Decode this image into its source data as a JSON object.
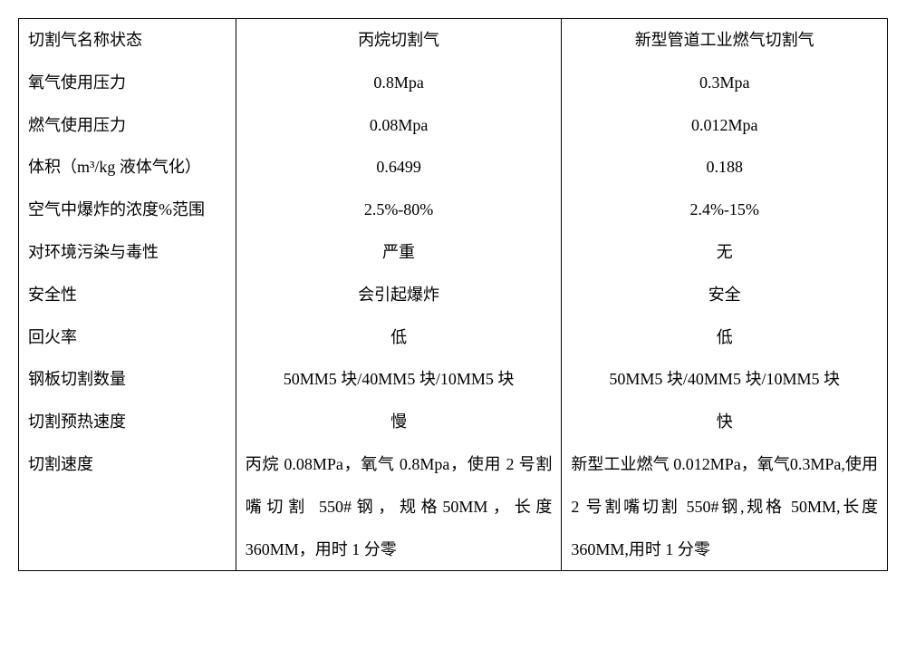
{
  "table": {
    "columns": {
      "label_header": "切割气名称状态",
      "col_a_header": "丙烷切割气",
      "col_b_header": "新型管道工业燃气切割气"
    },
    "rows": [
      {
        "label": "氧气使用压力",
        "a": "0.8Mpa",
        "b": "0.3Mpa"
      },
      {
        "label": "燃气使用压力",
        "a": "0.08Mpa",
        "b": "0.012Mpa"
      },
      {
        "label": "体积（m³/kg 液体气化）",
        "a": "0.6499",
        "b": "0.188"
      },
      {
        "label": "空气中爆炸的浓度%范围",
        "a": "2.5%-80%",
        "b": "2.4%-15%"
      },
      {
        "label": "对环境污染与毒性",
        "a": "严重",
        "b": "无"
      },
      {
        "label": "安全性",
        "a": "会引起爆炸",
        "b": "安全"
      },
      {
        "label": "回火率",
        "a": "低",
        "b": "低"
      },
      {
        "label": "钢板切割数量",
        "a": "50MM5 块/40MM5 块/10MM5 块",
        "b": "50MM5 块/40MM5 块/10MM5 块"
      },
      {
        "label": "切割预热速度",
        "a": "慢",
        "b": "快"
      },
      {
        "label": "切割速度",
        "a": "丙烷 0.08MPa，氧气 0.8Mpa，使用 2 号割嘴切割 550#钢，规格50MM，长度 360MM，用时 1 分零",
        "b": "新型工业燃气 0.012MPa，氧气0.3MPa,使用 2 号割嘴切割 550#钢,规格 50MM,长度 360MM,用时 1 分零"
      }
    ],
    "style": {
      "border_color": "#000000",
      "background_color": "#ffffff",
      "text_color": "#000000",
      "font_family": "SimSun",
      "font_size_pt": 14,
      "line_height": 2.6,
      "col_widths_pct": [
        25,
        37.5,
        37.5
      ],
      "alignments": [
        "left",
        "center",
        "center"
      ]
    }
  }
}
